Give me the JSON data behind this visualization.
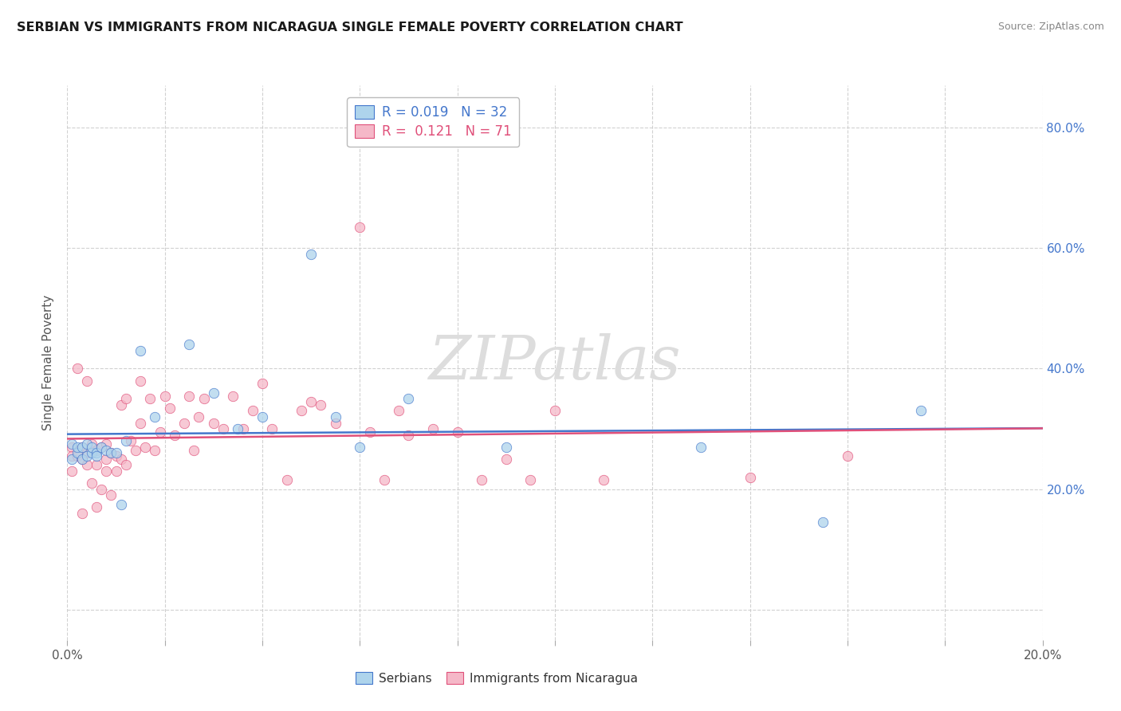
{
  "title": "SERBIAN VS IMMIGRANTS FROM NICARAGUA SINGLE FEMALE POVERTY CORRELATION CHART",
  "source": "Source: ZipAtlas.com",
  "ylabel": "Single Female Poverty",
  "xlim": [
    0.0,
    0.2
  ],
  "ylim": [
    -0.05,
    0.87
  ],
  "ytick_values": [
    0.0,
    0.2,
    0.4,
    0.6,
    0.8
  ],
  "xtick_values": [
    0.0,
    0.02,
    0.04,
    0.06,
    0.08,
    0.1,
    0.12,
    0.14,
    0.16,
    0.18,
    0.2
  ],
  "serbian_color": "#aed4ec",
  "nicaragua_color": "#f5b8c8",
  "serbian_line_color": "#4477cc",
  "nicaragua_line_color": "#e0507a",
  "legend_R_serbian": "0.019",
  "legend_N_serbian": "32",
  "legend_R_nicaragua": "0.121",
  "legend_N_nicaragua": "71",
  "serbian_x": [
    0.001,
    0.001,
    0.002,
    0.002,
    0.003,
    0.003,
    0.004,
    0.004,
    0.005,
    0.005,
    0.006,
    0.006,
    0.007,
    0.008,
    0.009,
    0.01,
    0.011,
    0.012,
    0.015,
    0.018,
    0.025,
    0.03,
    0.035,
    0.04,
    0.05,
    0.055,
    0.06,
    0.07,
    0.09,
    0.13,
    0.155,
    0.175
  ],
  "serbian_y": [
    0.275,
    0.25,
    0.26,
    0.27,
    0.27,
    0.25,
    0.275,
    0.255,
    0.26,
    0.27,
    0.26,
    0.255,
    0.27,
    0.265,
    0.26,
    0.26,
    0.175,
    0.28,
    0.43,
    0.32,
    0.44,
    0.36,
    0.3,
    0.32,
    0.59,
    0.32,
    0.27,
    0.35,
    0.27,
    0.27,
    0.145,
    0.33
  ],
  "nicaragua_x": [
    0.001,
    0.001,
    0.001,
    0.002,
    0.002,
    0.003,
    0.003,
    0.003,
    0.004,
    0.004,
    0.004,
    0.005,
    0.005,
    0.006,
    0.006,
    0.006,
    0.007,
    0.007,
    0.008,
    0.008,
    0.008,
    0.009,
    0.009,
    0.01,
    0.01,
    0.011,
    0.011,
    0.012,
    0.012,
    0.013,
    0.014,
    0.015,
    0.015,
    0.016,
    0.017,
    0.018,
    0.019,
    0.02,
    0.021,
    0.022,
    0.024,
    0.025,
    0.026,
    0.027,
    0.028,
    0.03,
    0.032,
    0.034,
    0.036,
    0.038,
    0.04,
    0.042,
    0.045,
    0.048,
    0.05,
    0.052,
    0.055,
    0.06,
    0.062,
    0.065,
    0.068,
    0.07,
    0.075,
    0.08,
    0.085,
    0.09,
    0.095,
    0.1,
    0.11,
    0.14,
    0.16
  ],
  "nicaragua_y": [
    0.27,
    0.255,
    0.23,
    0.4,
    0.255,
    0.27,
    0.25,
    0.16,
    0.26,
    0.24,
    0.38,
    0.275,
    0.21,
    0.265,
    0.24,
    0.17,
    0.27,
    0.2,
    0.275,
    0.25,
    0.23,
    0.26,
    0.19,
    0.255,
    0.23,
    0.34,
    0.25,
    0.35,
    0.24,
    0.28,
    0.265,
    0.38,
    0.31,
    0.27,
    0.35,
    0.265,
    0.295,
    0.355,
    0.335,
    0.29,
    0.31,
    0.355,
    0.265,
    0.32,
    0.35,
    0.31,
    0.3,
    0.355,
    0.3,
    0.33,
    0.375,
    0.3,
    0.215,
    0.33,
    0.345,
    0.34,
    0.31,
    0.635,
    0.295,
    0.215,
    0.33,
    0.29,
    0.3,
    0.295,
    0.215,
    0.25,
    0.215,
    0.33,
    0.215,
    0.22,
    0.255
  ]
}
